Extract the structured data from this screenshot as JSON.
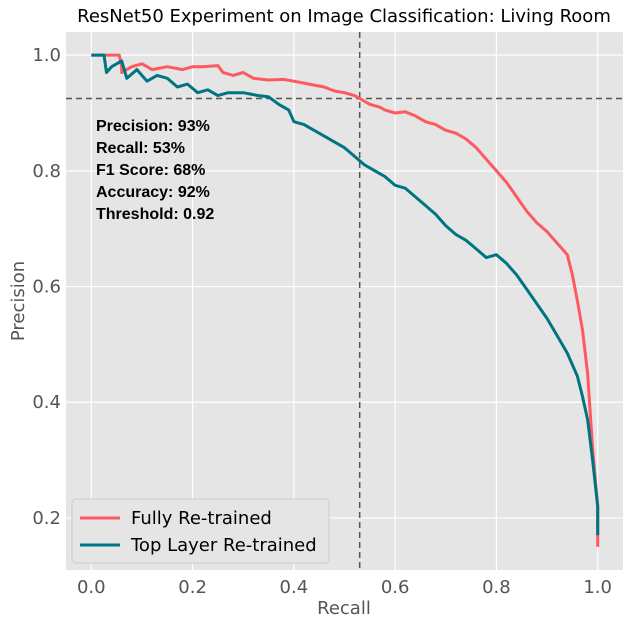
{
  "chart_data": {
    "type": "line",
    "title": "ResNet50 Experiment on Image Classification: Living Room",
    "xlabel": "Recall",
    "ylabel": "Precision",
    "xlim": [
      -0.05,
      1.05
    ],
    "ylim": [
      0.11,
      1.04
    ],
    "xticks": [
      0.0,
      0.2,
      0.4,
      0.6,
      0.8,
      1.0
    ],
    "xtick_labels": [
      "0.0",
      "0.2",
      "0.4",
      "0.6",
      "0.8",
      "1.0"
    ],
    "yticks": [
      0.2,
      0.4,
      0.6,
      0.8,
      1.0
    ],
    "ytick_labels": [
      "0.2",
      "0.4",
      "0.6",
      "0.8",
      "1.0"
    ],
    "grid": true,
    "legend_position": "lower-left",
    "reference_lines": {
      "x": 0.53,
      "y": 0.925
    },
    "annotations": [
      "Precision: 93%",
      "Recall: 53%",
      "F1 Score: 68%",
      "Accuracy: 92%",
      "Threshold: 0.92"
    ],
    "series": [
      {
        "name": "Fully Re-trained",
        "color": "#fc5a5f",
        "x": [
          0.0,
          0.055,
          0.06,
          0.06,
          0.08,
          0.1,
          0.12,
          0.15,
          0.18,
          0.2,
          0.22,
          0.25,
          0.26,
          0.28,
          0.3,
          0.32,
          0.35,
          0.38,
          0.4,
          0.43,
          0.46,
          0.48,
          0.5,
          0.52,
          0.53,
          0.55,
          0.57,
          0.58,
          0.6,
          0.62,
          0.64,
          0.66,
          0.68,
          0.7,
          0.72,
          0.74,
          0.76,
          0.78,
          0.8,
          0.82,
          0.84,
          0.86,
          0.88,
          0.9,
          0.92,
          0.94,
          0.95,
          0.96,
          0.97,
          0.98,
          0.99,
          1.0,
          1.0
        ],
        "y": [
          1.0,
          1.0,
          0.98,
          0.97,
          0.98,
          0.985,
          0.975,
          0.98,
          0.975,
          0.98,
          0.98,
          0.982,
          0.97,
          0.965,
          0.97,
          0.96,
          0.957,
          0.958,
          0.955,
          0.95,
          0.945,
          0.938,
          0.935,
          0.93,
          0.925,
          0.915,
          0.91,
          0.905,
          0.9,
          0.902,
          0.895,
          0.885,
          0.88,
          0.87,
          0.865,
          0.855,
          0.84,
          0.82,
          0.8,
          0.78,
          0.755,
          0.73,
          0.71,
          0.695,
          0.675,
          0.655,
          0.62,
          0.575,
          0.525,
          0.45,
          0.32,
          0.22,
          0.15
        ]
      },
      {
        "name": "Top Layer Re-trained",
        "color": "#007582",
        "x": [
          0.0,
          0.025,
          0.03,
          0.04,
          0.06,
          0.07,
          0.09,
          0.11,
          0.13,
          0.15,
          0.17,
          0.19,
          0.21,
          0.23,
          0.25,
          0.27,
          0.3,
          0.33,
          0.35,
          0.37,
          0.39,
          0.4,
          0.42,
          0.44,
          0.46,
          0.48,
          0.5,
          0.52,
          0.54,
          0.56,
          0.58,
          0.6,
          0.62,
          0.64,
          0.66,
          0.68,
          0.7,
          0.72,
          0.74,
          0.76,
          0.78,
          0.8,
          0.82,
          0.84,
          0.86,
          0.88,
          0.9,
          0.92,
          0.94,
          0.96,
          0.97,
          0.98,
          0.99,
          1.0,
          1.0
        ],
        "y": [
          1.0,
          1.0,
          0.97,
          0.98,
          0.99,
          0.96,
          0.975,
          0.955,
          0.965,
          0.96,
          0.945,
          0.95,
          0.935,
          0.94,
          0.93,
          0.935,
          0.935,
          0.93,
          0.928,
          0.915,
          0.905,
          0.885,
          0.88,
          0.87,
          0.86,
          0.85,
          0.84,
          0.825,
          0.81,
          0.8,
          0.79,
          0.775,
          0.77,
          0.755,
          0.74,
          0.725,
          0.705,
          0.69,
          0.68,
          0.665,
          0.65,
          0.655,
          0.64,
          0.62,
          0.595,
          0.57,
          0.545,
          0.515,
          0.485,
          0.445,
          0.41,
          0.37,
          0.3,
          0.22,
          0.17
        ]
      }
    ]
  }
}
